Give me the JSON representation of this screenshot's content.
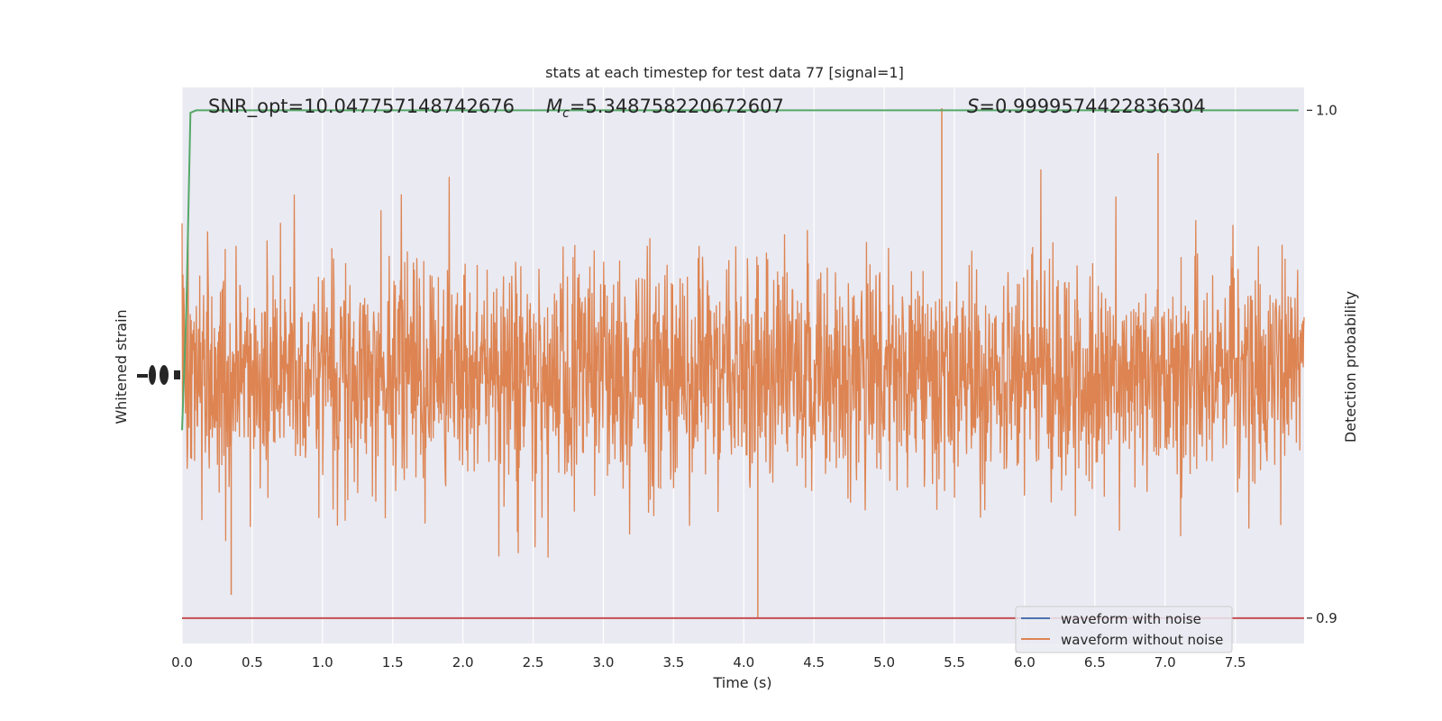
{
  "chart_data": {
    "type": "line",
    "title": "stats at each timestep for test data 77 [signal=1]",
    "xlabel": "Time (s)",
    "ylabel_left": "Whitened strain",
    "ylabel_right": "Detection probability",
    "xlim": [
      0.0,
      7.99
    ],
    "xticks": [
      "0.0",
      "0.5",
      "1.0",
      "1.5",
      "2.0",
      "2.5",
      "3.0",
      "3.5",
      "4.0",
      "4.5",
      "5.0",
      "5.5",
      "6.0",
      "6.5",
      "7.0",
      "7.5"
    ],
    "y_right_lim": [
      0.895,
      1.0045
    ],
    "y_right_ticks": [
      "0.9",
      "1.0"
    ],
    "grid": true,
    "annotations": {
      "snr": "SNR_opt=10.047757148742676",
      "mc_symbol": "M",
      "mc_sub": "c",
      "mc_value": "=5.348758220672607",
      "s_symbol": "S",
      "s_value": "=0.9999574422836304"
    },
    "legend": {
      "placement": "lower-right",
      "entries": [
        {
          "label": "waveform with noise",
          "color": "#4c72b0"
        },
        {
          "label": "waveform without noise",
          "color": "#dd8452"
        }
      ]
    },
    "series": [
      {
        "name": "waveform with noise",
        "color": "#4c72b0"
      },
      {
        "name": "waveform without noise",
        "color": "#dd8452"
      }
    ],
    "detection_probability": {
      "color": "#55a868",
      "x": [
        0.0,
        0.03,
        0.06,
        0.1,
        7.95
      ],
      "y": [
        0.937,
        0.96,
        0.9995,
        1.0,
        1.0
      ]
    },
    "threshold": {
      "y": 0.9,
      "color": "#c44e52"
    }
  }
}
